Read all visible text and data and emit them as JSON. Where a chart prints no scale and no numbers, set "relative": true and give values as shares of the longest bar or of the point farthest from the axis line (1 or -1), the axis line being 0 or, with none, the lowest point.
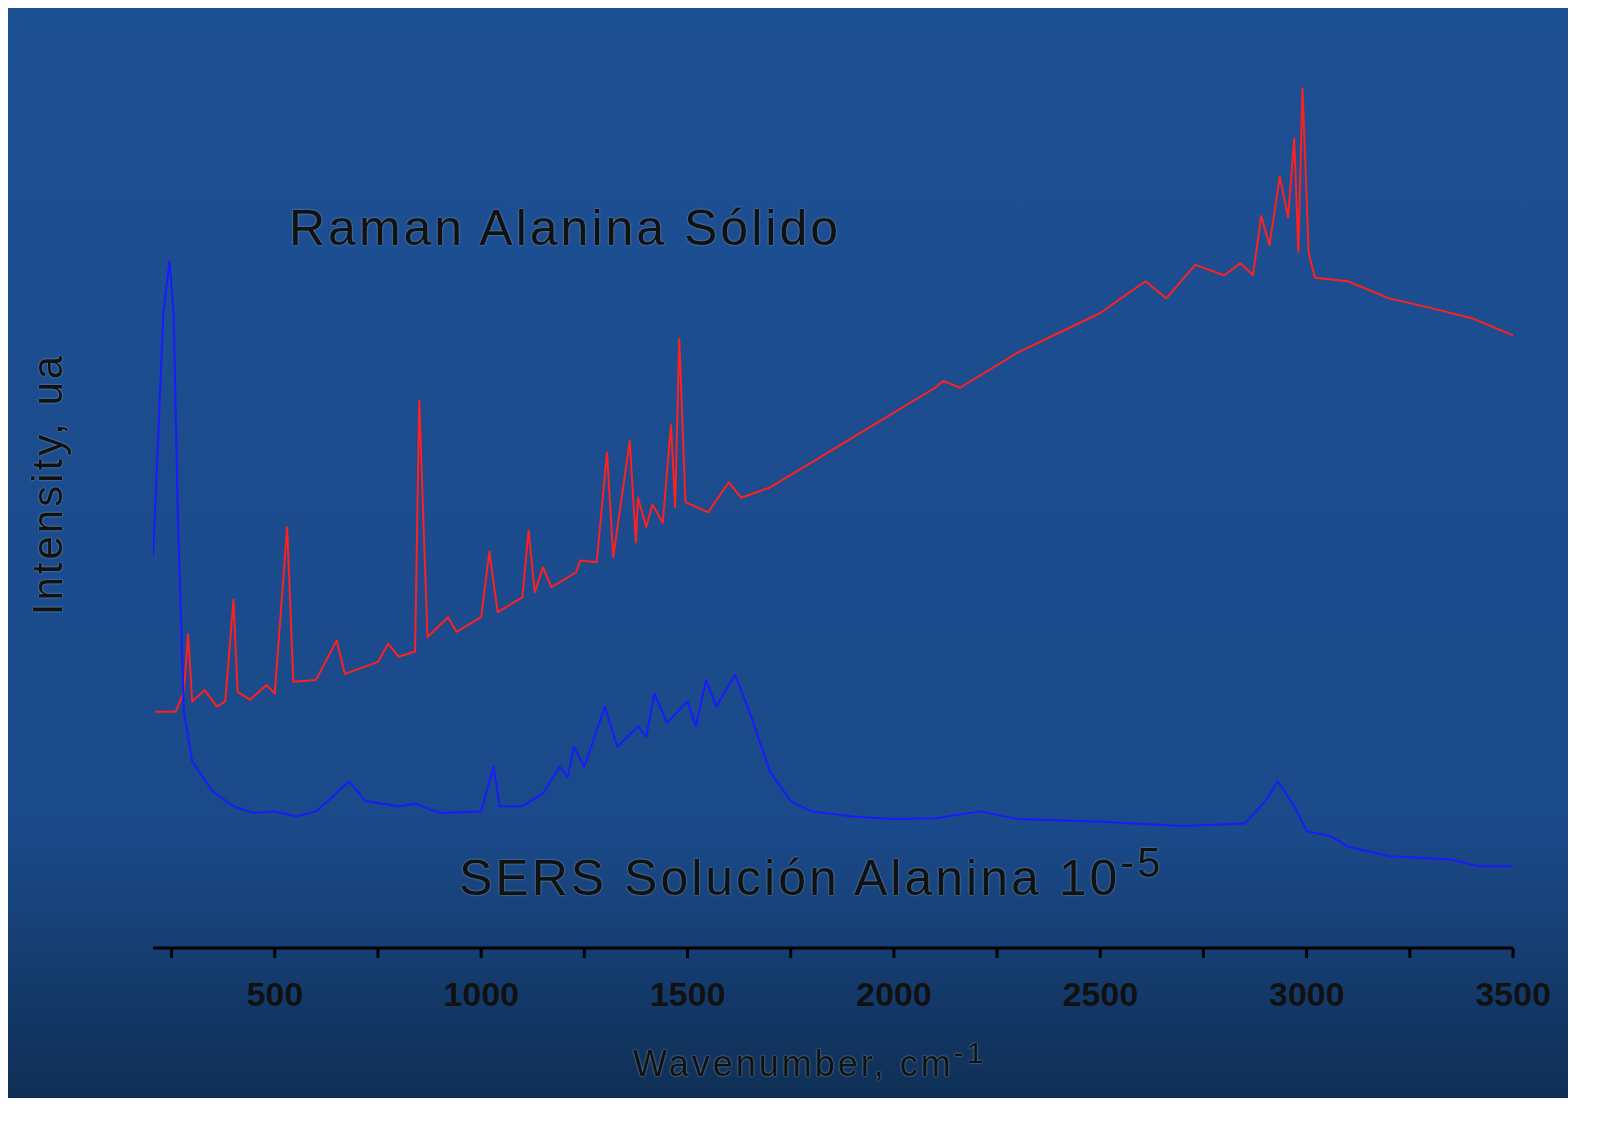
{
  "chart_data": {
    "type": "line",
    "relative": true,
    "xlabel": "Wavenumber, cm$^{-1}$",
    "ylabel": "Intensity, ua",
    "xlim": [
      205,
      3500
    ],
    "xticks": [
      {
        "value": 250,
        "label": null
      },
      500,
      {
        "value": 750,
        "label": null
      },
      1000,
      {
        "value": 1250,
        "label": null
      },
      1500,
      {
        "value": 1750,
        "label": null
      },
      2000,
      {
        "value": 2250,
        "label": null
      },
      2500,
      {
        "value": 2750,
        "label": null
      },
      3000,
      {
        "value": 3250,
        "label": null
      },
      3500
    ],
    "marker": "none",
    "line_style": "solid",
    "annotations": [
      "Raman Alanina Sólido",
      "SERS Solución Alanina 10$^{-5}$"
    ],
    "series": [
      {
        "color": "#ff2020",
        "x": [
          210,
          260,
          280,
          290,
          300,
          330,
          360,
          380,
          400,
          410,
          440,
          480,
          500,
          530,
          545,
          600,
          650,
          670,
          750,
          775,
          800,
          840,
          850,
          870,
          920,
          940,
          1000,
          1020,
          1040,
          1100,
          1115,
          1130,
          1150,
          1170,
          1230,
          1240,
          1280,
          1305,
          1320,
          1360,
          1375,
          1380,
          1400,
          1415,
          1440,
          1460,
          1470,
          1480,
          1495,
          1550,
          1600,
          1630,
          1700,
          1800,
          1900,
          2000,
          2100,
          2120,
          2160,
          2300,
          2400,
          2500,
          2550,
          2610,
          2660,
          2730,
          2800,
          2840,
          2870,
          2890,
          2910,
          2935,
          2955,
          2970,
          2980,
          2990,
          3005,
          3020,
          3100,
          3200,
          3300,
          3400,
          3500
        ],
        "values": [
          0.275,
          0.275,
          0.298,
          0.365,
          0.287,
          0.3,
          0.281,
          0.287,
          0.405,
          0.298,
          0.289,
          0.306,
          0.296,
          0.49,
          0.31,
          0.312,
          0.358,
          0.319,
          0.333,
          0.354,
          0.339,
          0.345,
          0.637,
          0.362,
          0.385,
          0.368,
          0.385,
          0.461,
          0.391,
          0.408,
          0.486,
          0.414,
          0.443,
          0.42,
          0.437,
          0.451,
          0.449,
          0.577,
          0.455,
          0.59,
          0.472,
          0.524,
          0.49,
          0.516,
          0.495,
          0.609,
          0.513,
          0.709,
          0.519,
          0.507,
          0.542,
          0.524,
          0.536,
          0.565,
          0.594,
          0.623,
          0.652,
          0.66,
          0.652,
          0.693,
          0.716,
          0.739,
          0.756,
          0.776,
          0.756,
          0.795,
          0.783,
          0.797,
          0.783,
          0.852,
          0.818,
          0.898,
          0.85,
          0.942,
          0.81,
          1,
          0.809,
          0.78,
          0.776,
          0.756,
          0.745,
          0.733,
          0.713
        ]
      },
      {
        "color": "#1a1aff",
        "x": [
          205,
          215,
          230,
          245,
          255,
          265,
          280,
          300,
          350,
          400,
          450,
          500,
          550,
          600,
          640,
          680,
          720,
          800,
          840,
          900,
          1000,
          1030,
          1045,
          1100,
          1150,
          1190,
          1210,
          1225,
          1250,
          1300,
          1330,
          1380,
          1400,
          1420,
          1450,
          1500,
          1520,
          1545,
          1570,
          1590,
          1615,
          1650,
          1700,
          1750,
          1800,
          1900,
          2000,
          2100,
          2210,
          2300,
          2500,
          2700,
          2850,
          2900,
          2930,
          2970,
          3000,
          3060,
          3100,
          3200,
          3350,
          3420,
          3500
        ],
        "values": [
          0.455,
          0.565,
          0.739,
          0.799,
          0.739,
          0.507,
          0.275,
          0.217,
          0.182,
          0.165,
          0.157,
          0.159,
          0.153,
          0.159,
          0.176,
          0.194,
          0.171,
          0.165,
          0.168,
          0.157,
          0.159,
          0.211,
          0.165,
          0.165,
          0.18,
          0.211,
          0.199,
          0.234,
          0.211,
          0.281,
          0.234,
          0.258,
          0.246,
          0.296,
          0.262,
          0.287,
          0.258,
          0.312,
          0.281,
          0.298,
          0.318,
          0.275,
          0.205,
          0.171,
          0.159,
          0.153,
          0.15,
          0.151,
          0.159,
          0.15,
          0.147,
          0.142,
          0.145,
          0.171,
          0.194,
          0.165,
          0.136,
          0.13,
          0.118,
          0.107,
          0.103,
          0.095,
          0.095
        ]
      }
    ]
  }
}
